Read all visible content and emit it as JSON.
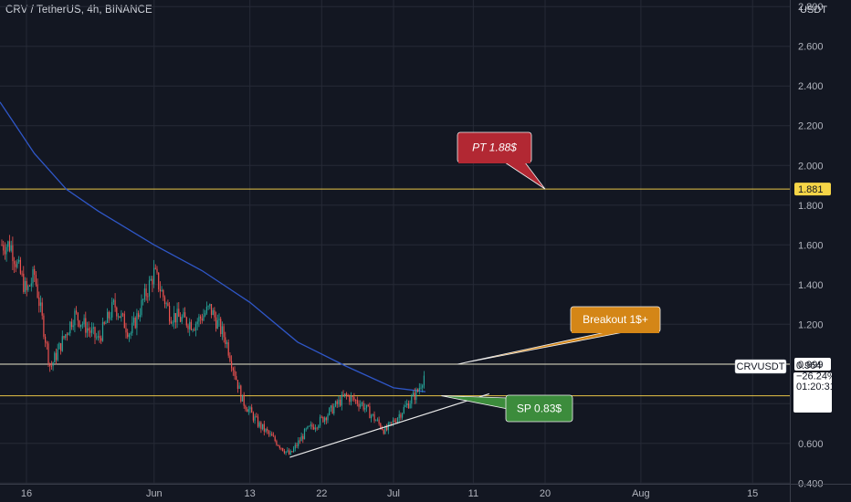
{
  "header": {
    "title": "CRV / TetherUS, 4h, BINANCE"
  },
  "chart_data": {
    "type": "candlestick",
    "symbol": "CRVUSDT",
    "interval": "4h",
    "exchange": "BINANCE",
    "y_unit": "USDT",
    "ylim": [
      0.36,
      2.87
    ],
    "y_ticks": [
      "2.800",
      "2.600",
      "2.400",
      "2.200",
      "2.000",
      "1.800",
      "1.600",
      "1.400",
      "1.200",
      "1.000",
      "0.800",
      "0.600",
      "0.400"
    ],
    "x_ticks": [
      "16",
      "Jun",
      "13",
      "22",
      "Jul",
      "11",
      "20",
      "Aug",
      "15"
    ],
    "price_path": [
      [
        "May 14",
        1.6
      ],
      [
        "May 16",
        1.36
      ],
      [
        "May 17",
        1.45
      ],
      [
        "May 19",
        0.98
      ],
      [
        "May 22",
        1.25
      ],
      [
        "May 25",
        1.12
      ],
      [
        "May 27",
        1.3
      ],
      [
        "May 29",
        1.15
      ],
      [
        "Jun 1",
        1.46
      ],
      [
        "Jun 3",
        1.25
      ],
      [
        "Jun 6",
        1.2
      ],
      [
        "Jun 8",
        1.28
      ],
      [
        "Jun 10",
        1.12
      ],
      [
        "Jun 12",
        0.82
      ],
      [
        "Jun 14",
        0.7
      ],
      [
        "Jun 16",
        0.62
      ],
      [
        "Jun 18",
        0.54
      ],
      [
        "Jun 20",
        0.66
      ],
      [
        "Jun 22",
        0.72
      ],
      [
        "Jun 25",
        0.84
      ],
      [
        "Jun 27",
        0.8
      ],
      [
        "Jun 30",
        0.66
      ],
      [
        "Jul 2",
        0.76
      ],
      [
        "Jul 4",
        0.86
      ],
      [
        "Jul 5",
        0.96
      ]
    ],
    "moving_average": [
      [
        "May 14",
        2.24
      ],
      [
        "May 17",
        2.06
      ],
      [
        "May 21",
        1.88
      ],
      [
        "May 25",
        1.77
      ],
      [
        "Jun 1",
        1.6
      ],
      [
        "Jun 7",
        1.47
      ],
      [
        "Jun 13",
        1.31
      ],
      [
        "Jun 19",
        1.11
      ],
      [
        "Jun 25",
        0.99
      ],
      [
        "Jul 1",
        0.88
      ],
      [
        "Jul 5",
        0.86
      ]
    ],
    "horizontal_levels": [
      {
        "value": 1.881,
        "color": "#e8c547",
        "label": "1.881"
      },
      {
        "value": 0.999,
        "color": "#e6e3c8",
        "label": "0.999"
      },
      {
        "value": 0.84,
        "color": "#e8c547",
        "label": "0.840"
      }
    ],
    "trendline": [
      [
        "Jun 18",
        0.53
      ],
      [
        "Jul 13",
        0.85
      ]
    ],
    "annotations": [
      {
        "text": "PT 1.88$",
        "color": "#b22833",
        "target": [
          "Jul 20",
          1.881
        ]
      },
      {
        "text": "Breakout 1$+",
        "color": "#d48617",
        "target": [
          "Jul 9",
          0.999
        ]
      },
      {
        "text": "SP 0.83$",
        "color": "#3c8c3c",
        "target": [
          "Jul 7",
          0.84
        ]
      }
    ],
    "price_label": {
      "symbol": "CRVUSDT",
      "price": "0.964",
      "change": "−26.24%",
      "countdown": "01:20:31"
    }
  }
}
